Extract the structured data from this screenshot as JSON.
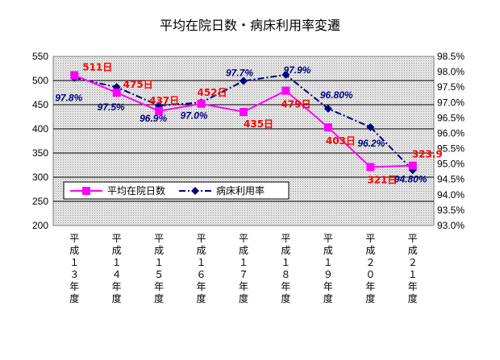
{
  "chart_data": {
    "type": "line",
    "title": "平均在院日数・病床利用率変遷",
    "categories": [
      "平成13年度",
      "平成14年度",
      "平成15年度",
      "平成16年度",
      "平成17年度",
      "平成18年度",
      "平成19年度",
      "平成20年度",
      "平成21年度"
    ],
    "y1_ticks": [
      "550",
      "500",
      "450",
      "400",
      "350",
      "300",
      "250",
      "200"
    ],
    "y1lim": [
      200,
      550
    ],
    "y2_ticks": [
      "98.5%",
      "98.0%",
      "97.5%",
      "97.0%",
      "96.5%",
      "96.0%",
      "95.5%",
      "95.0%",
      "94.5%",
      "94.0%",
      "93.5%",
      "93.0%"
    ],
    "y2lim": [
      93.0,
      98.5
    ],
    "grid": true,
    "legend_position": "lower-left",
    "series": [
      {
        "name": "平均在院日数",
        "axis": "left",
        "color": "#ff00ff",
        "marker": "square",
        "values": [
          511,
          475,
          437,
          452,
          435,
          479,
          403,
          321,
          323.9
        ],
        "labels": [
          "511日",
          "475日",
          "437日",
          "452日",
          "435日",
          "479日",
          "403日",
          "321日",
          "323.9"
        ]
      },
      {
        "name": "病床利用率",
        "axis": "right",
        "color": "#000080",
        "marker": "diamond",
        "values": [
          97.8,
          97.5,
          96.9,
          97.0,
          97.7,
          97.9,
          96.8,
          96.2,
          94.8
        ],
        "labels": [
          "97.8%",
          "97.5%",
          "96.9%",
          "97.0%",
          "97.7%",
          "97.9%",
          "96.80%",
          "96.2%",
          "94.80%"
        ]
      }
    ]
  }
}
